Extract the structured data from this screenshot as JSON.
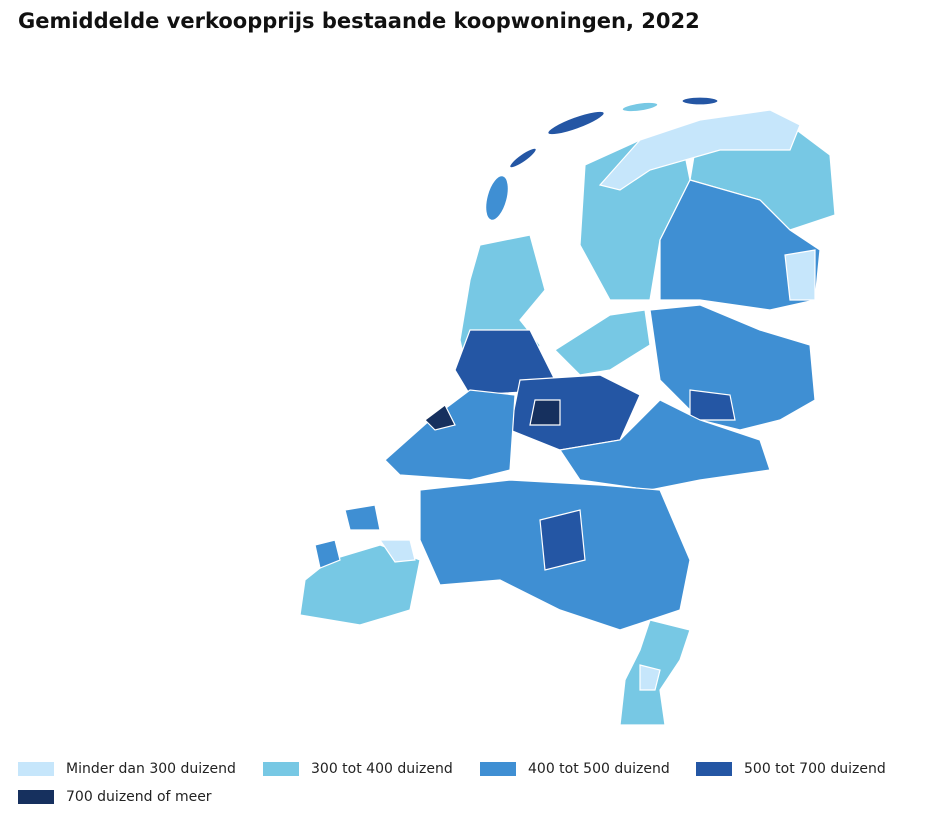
{
  "header": {
    "title": "Gemiddelde verkoopprijs bestaande koopwoningen, 2022"
  },
  "legend": [
    {
      "label": "Minder dan 300 duizend",
      "color": "#c6e6fb"
    },
    {
      "label": "300 tot 400 duizend",
      "color": "#77c8e4"
    },
    {
      "label": "400 tot 500 duizend",
      "color": "#3f8fd3"
    },
    {
      "label": "500 tot 700 duizend",
      "color": "#2456a4"
    },
    {
      "label": "700 duizend of meer",
      "color": "#16305e"
    }
  ]
}
